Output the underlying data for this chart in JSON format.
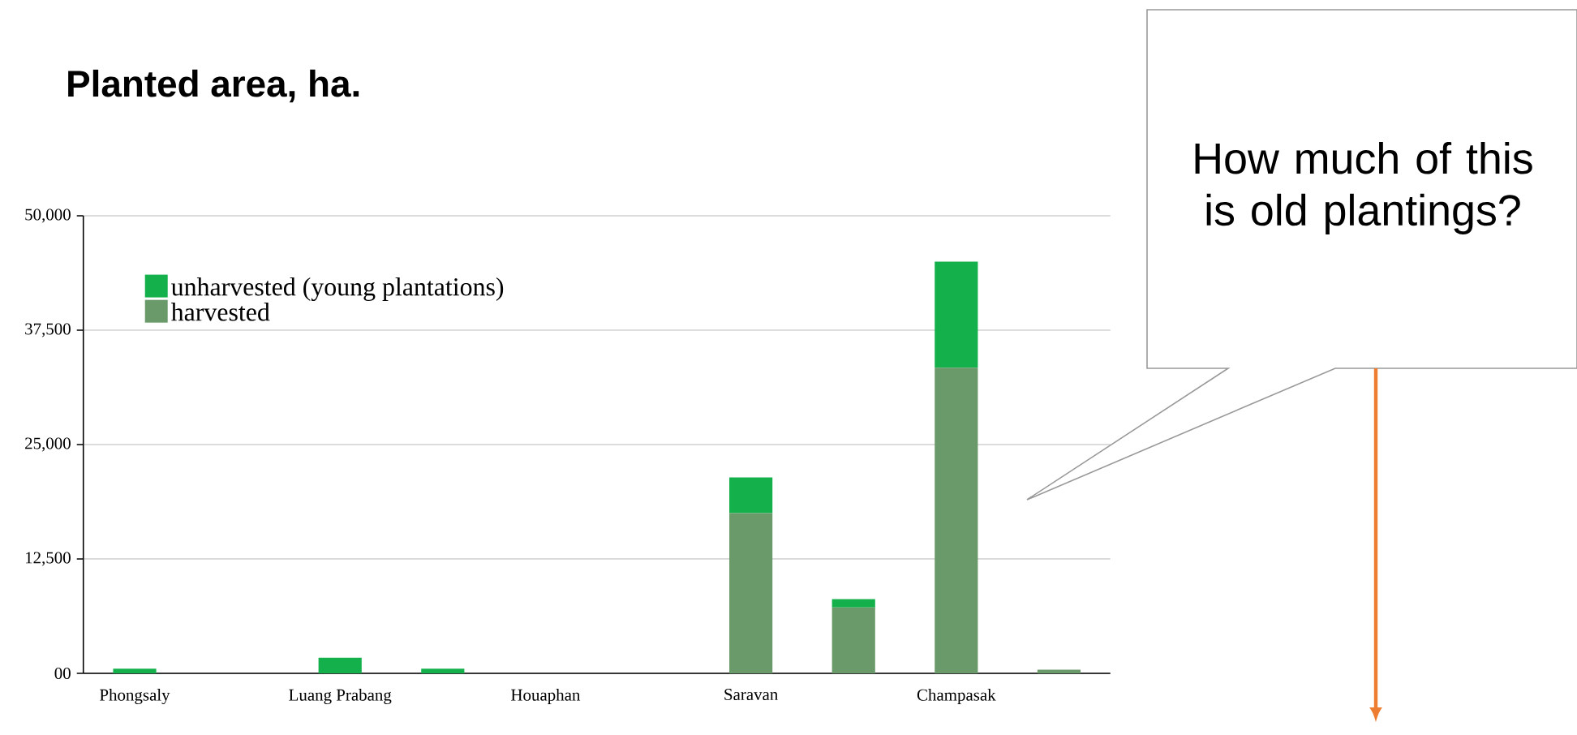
{
  "chart_data": {
    "type": "bar",
    "title": "Planted area, ha.",
    "stacked": true,
    "categories": [
      "Phongsaly",
      null,
      "Luang Prabang",
      null,
      "Houaphan",
      null,
      "Saravan",
      null,
      "Champasak",
      null
    ],
    "series": [
      {
        "name": "harvested",
        "color": "#6a9a6a",
        "values": [
          0,
          0,
          0,
          0,
          0,
          0,
          17500,
          7200,
          33400,
          400
        ]
      },
      {
        "name": "unharvested (young plantations)",
        "color": "#13b04b",
        "values": [
          500,
          0,
          1700,
          500,
          0,
          0,
          3900,
          900,
          11600,
          0
        ]
      }
    ],
    "ylim": [
      0,
      50000
    ],
    "yticks": [
      {
        "value": 0,
        "label": "00"
      },
      {
        "value": 12500,
        "label": "12,500"
      },
      {
        "value": 25000,
        "label": "25,000"
      },
      {
        "value": 37500,
        "label": "37,500"
      },
      {
        "value": 50000,
        "label": "50,000"
      }
    ],
    "grid": "y",
    "legend": "top left",
    "annotations": [
      "How much of this is old plantings?"
    ]
  }
}
